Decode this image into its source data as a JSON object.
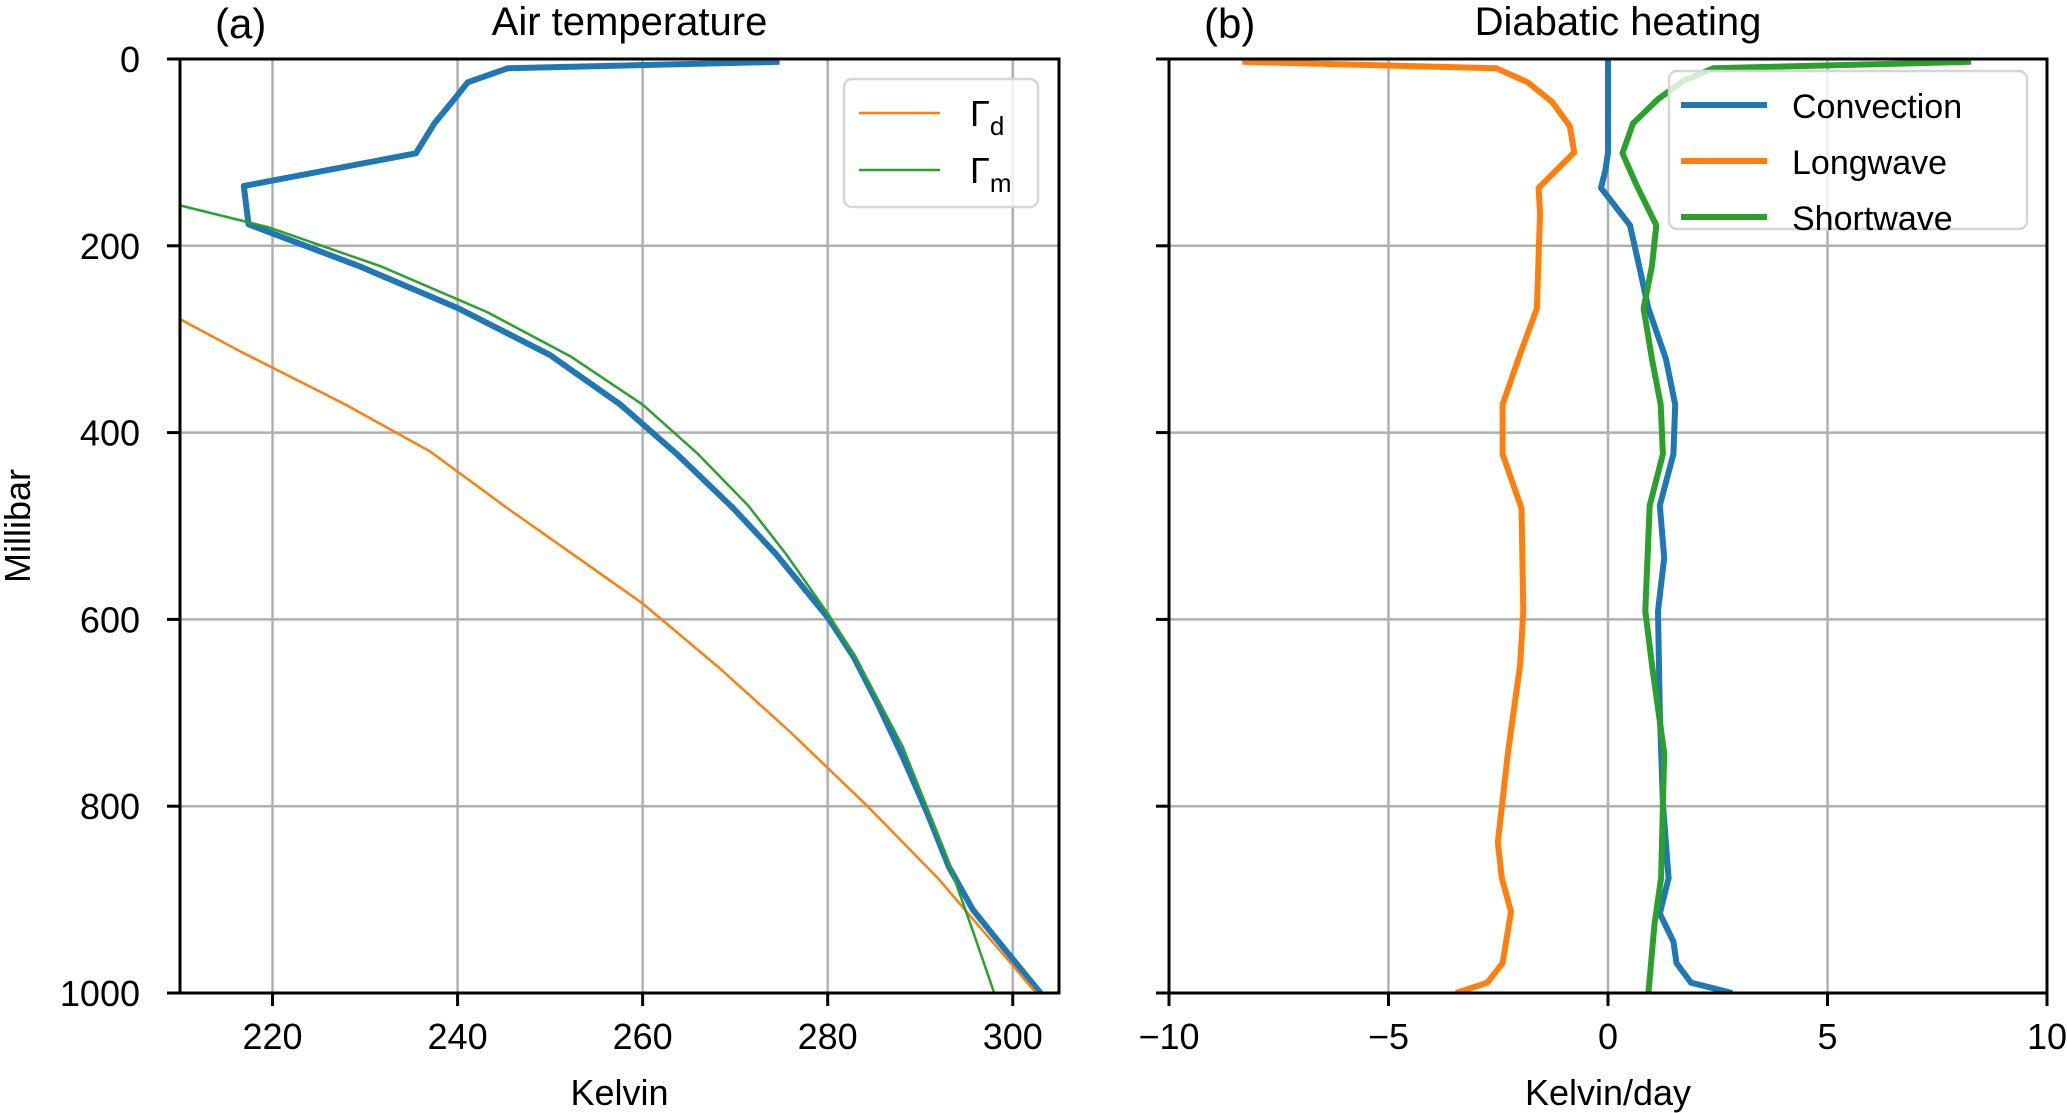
{
  "chart_data": [
    {
      "type": "line",
      "panel_label": "(a)",
      "title": "Air temperature",
      "xlabel": "Kelvin",
      "ylabel": "Millibar",
      "xlim": [
        210,
        305
      ],
      "ylim": [
        1000,
        0
      ],
      "xticks": [
        220,
        240,
        260,
        280,
        300
      ],
      "yticks": [
        0,
        200,
        400,
        600,
        800,
        1000
      ],
      "grid": true,
      "legend_position": "top-right",
      "series": [
        {
          "name": "Convection",
          "legend": false,
          "color": "#1f77b4",
          "width": 6,
          "points": [
            [
              274.8,
              3
            ],
            [
              245.4,
              10
            ],
            [
              241.1,
              25
            ],
            [
              239.4,
              46
            ],
            [
              237.5,
              69
            ],
            [
              235.5,
              101
            ],
            [
              216.9,
              136
            ],
            [
              217.4,
              177
            ],
            [
              229.4,
              222
            ],
            [
              240.1,
              267
            ],
            [
              250,
              317
            ],
            [
              257.6,
              370
            ],
            [
              263.7,
              423
            ],
            [
              269.8,
              481
            ],
            [
              274.4,
              530
            ],
            [
              280.1,
              599
            ],
            [
              282.8,
              640
            ],
            [
              285.4,
              690
            ],
            [
              288.1,
              747
            ],
            [
              290.8,
              808
            ],
            [
              293.1,
              865
            ],
            [
              295.7,
              911
            ],
            [
              298.8,
              949
            ],
            [
              303,
              1000
            ]
          ]
        },
        {
          "name": "Γ",
          "sub": "d",
          "legend": true,
          "color": "#ff7f0e",
          "width": 2.5,
          "points": [
            [
              210.1,
              279
            ],
            [
              216.5,
              313
            ],
            [
              227.9,
              370
            ],
            [
              237,
              420
            ],
            [
              245.4,
              481
            ],
            [
              253,
              534
            ],
            [
              260,
              583
            ],
            [
              268.3,
              652
            ],
            [
              275.9,
              720
            ],
            [
              284.3,
              800
            ],
            [
              291.9,
              877
            ],
            [
              302.2,
              996
            ],
            [
              302.6,
              1000
            ]
          ]
        },
        {
          "name": "Γ",
          "sub": "m",
          "legend": true,
          "color": "#2ca02c",
          "width": 2.5,
          "points": [
            [
              210.1,
              157
            ],
            [
              219.5,
              180
            ],
            [
              231.7,
              222
            ],
            [
              243.2,
              271
            ],
            [
              252.3,
              319
            ],
            [
              260,
              370
            ],
            [
              266,
              423
            ],
            [
              271.4,
              478
            ],
            [
              275.5,
              530
            ],
            [
              280.1,
              595
            ],
            [
              283.2,
              644
            ],
            [
              288.1,
              736
            ],
            [
              292.7,
              850
            ],
            [
              295.7,
              934
            ],
            [
              298,
              1000
            ]
          ]
        }
      ]
    },
    {
      "type": "line",
      "panel_label": "(b)",
      "title": "Diabatic heating",
      "xlabel": "Kelvin/day",
      "ylabel": "",
      "xlim": [
        -10,
        10
      ],
      "ylim": [
        1000,
        0
      ],
      "xticks": [
        -10,
        -5,
        0,
        5,
        10
      ],
      "xtick_labels": [
        "−10",
        "−5",
        "0",
        "5",
        "10"
      ],
      "yticks": [
        0,
        200,
        400,
        600,
        800,
        1000
      ],
      "grid": true,
      "legend_position": "top-right",
      "series": [
        {
          "name": "Convection",
          "legend": true,
          "color": "#1f77b4",
          "width": 6,
          "points": [
            [
              0,
              0
            ],
            [
              0,
              100
            ],
            [
              -0.06,
              119
            ],
            [
              -0.16,
              138
            ],
            [
              0.5,
              178
            ],
            [
              0.71,
              222
            ],
            [
              0.92,
              267
            ],
            [
              1.32,
              321
            ],
            [
              1.53,
              370
            ],
            [
              1.49,
              423
            ],
            [
              1.18,
              478
            ],
            [
              1.28,
              534
            ],
            [
              1.14,
              591
            ],
            [
              1.18,
              698
            ],
            [
              1.25,
              797
            ],
            [
              1.38,
              877
            ],
            [
              1.18,
              915
            ],
            [
              1.49,
              945
            ],
            [
              1.56,
              968
            ],
            [
              1.89,
              989
            ],
            [
              2.83,
              1000
            ]
          ]
        },
        {
          "name": "Longwave",
          "legend": true,
          "color": "#ff7f0e",
          "width": 6,
          "points": [
            [
              -8.33,
              3
            ],
            [
              -2.54,
              10
            ],
            [
              -1.83,
              25
            ],
            [
              -1.27,
              46
            ],
            [
              -0.87,
              72
            ],
            [
              -0.77,
              100
            ],
            [
              -1.58,
              138
            ],
            [
              -1.55,
              165
            ],
            [
              -1.62,
              267
            ],
            [
              -2.04,
              321
            ],
            [
              -2.4,
              370
            ],
            [
              -2.4,
              423
            ],
            [
              -1.97,
              481
            ],
            [
              -1.93,
              591
            ],
            [
              -2.0,
              648
            ],
            [
              -2.28,
              743
            ],
            [
              -2.51,
              839
            ],
            [
              -2.42,
              877
            ],
            [
              -2.21,
              913
            ],
            [
              -2.4,
              968
            ],
            [
              -2.75,
              989
            ],
            [
              -3.46,
              1000
            ]
          ]
        },
        {
          "name": "Shortwave",
          "legend": true,
          "color": "#2ca02c",
          "width": 6,
          "points": [
            [
              8.27,
              3
            ],
            [
              2.4,
              10
            ],
            [
              1.7,
              24
            ],
            [
              1.14,
              43
            ],
            [
              0.57,
              69
            ],
            [
              0.33,
              101
            ],
            [
              0.64,
              134
            ],
            [
              1.1,
              178
            ],
            [
              1.0,
              222
            ],
            [
              0.81,
              267
            ],
            [
              1.0,
              321
            ],
            [
              1.2,
              370
            ],
            [
              1.25,
              423
            ],
            [
              0.95,
              478
            ],
            [
              0.85,
              591
            ],
            [
              1.0,
              648
            ],
            [
              1.28,
              743
            ],
            [
              1.21,
              877
            ],
            [
              1.06,
              926
            ],
            [
              0.92,
              1000
            ]
          ]
        }
      ]
    }
  ]
}
